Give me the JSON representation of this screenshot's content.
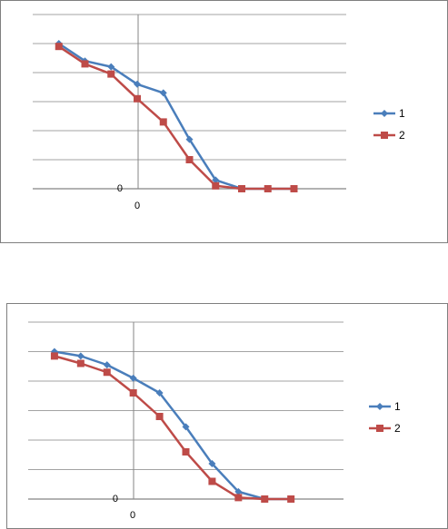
{
  "colors": {
    "series1": "#4a7ebb",
    "series2": "#be4b48",
    "grid": "#858585",
    "text": "#000000"
  },
  "chart_data": [
    {
      "type": "line",
      "grid": true,
      "legend_position": "right",
      "x_tick_label": "0",
      "y_tick_label": "0",
      "x": [
        -3,
        -2,
        -1,
        0,
        1,
        2,
        3,
        4,
        5,
        6
      ],
      "ylim": [
        0,
        6
      ],
      "series": [
        {
          "name": "1",
          "marker": "diamond",
          "values": [
            5.0,
            4.4,
            4.2,
            3.6,
            3.3,
            1.7,
            0.3,
            0.0,
            0.0,
            0.0
          ]
        },
        {
          "name": "2",
          "marker": "square",
          "values": [
            4.9,
            4.3,
            3.95,
            3.1,
            2.3,
            1.0,
            0.1,
            0.0,
            0.0,
            0.0
          ]
        }
      ]
    },
    {
      "type": "line",
      "grid": true,
      "legend_position": "right",
      "x_tick_label": "0",
      "y_tick_label": "0",
      "x": [
        -3,
        -2,
        -1,
        0,
        1,
        2,
        3,
        4,
        5,
        6
      ],
      "ylim": [
        0,
        6
      ],
      "series": [
        {
          "name": "1",
          "marker": "diamond",
          "values": [
            5.0,
            4.85,
            4.55,
            4.1,
            3.6,
            2.45,
            1.2,
            0.25,
            0.0,
            0.0
          ]
        },
        {
          "name": "2",
          "marker": "square",
          "values": [
            4.85,
            4.6,
            4.3,
            3.6,
            2.8,
            1.6,
            0.6,
            0.05,
            0.0,
            0.0
          ]
        }
      ]
    }
  ]
}
